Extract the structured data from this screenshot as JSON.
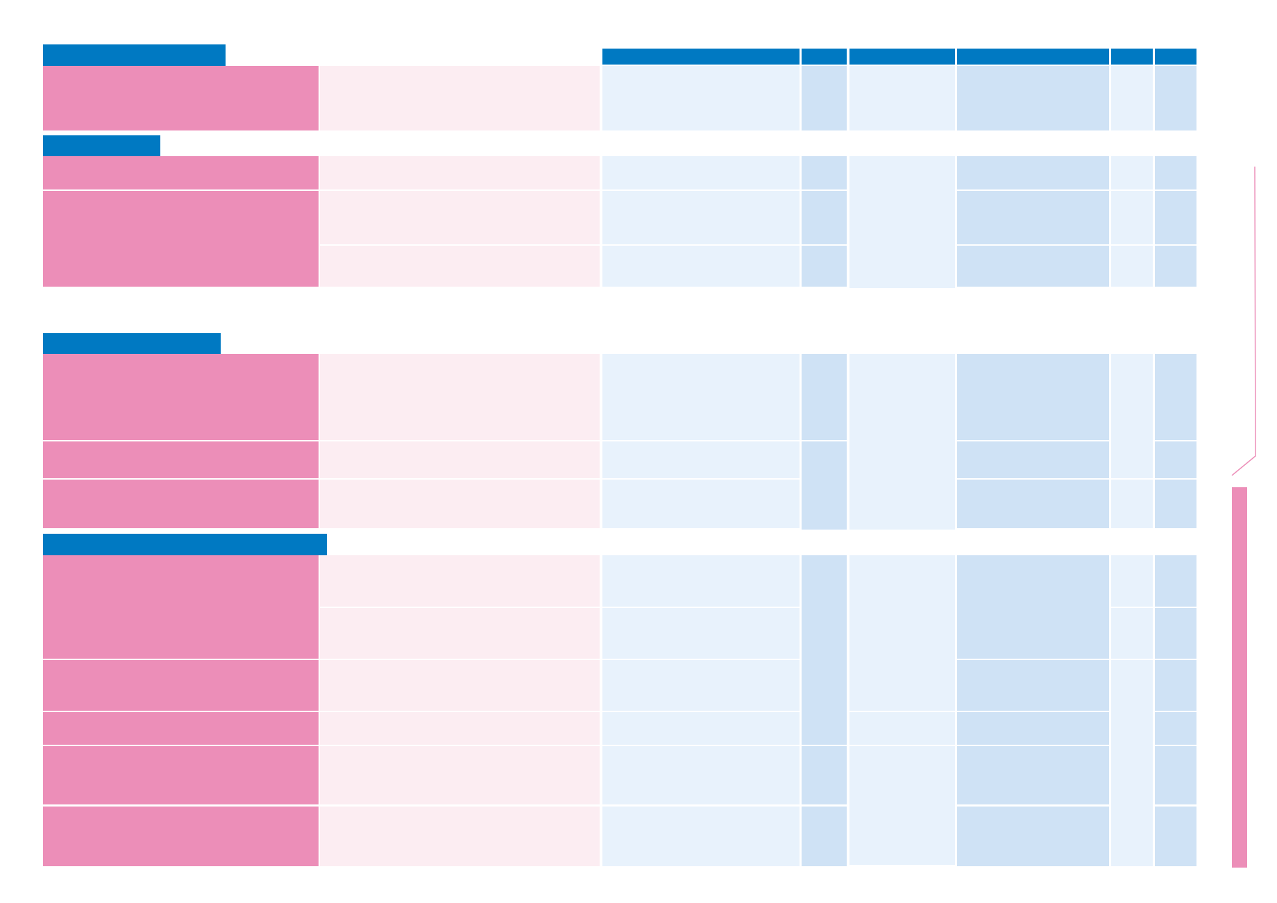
{
  "colors": {
    "header_blue": "#0079C2",
    "label_pink": "#EC8EB8",
    "pale_pink": "#FCEDF2",
    "pale_blue": "#E8F2FC",
    "mid_blue": "#CFE2F5",
    "accent_pink": "#EC8EB8"
  },
  "page": {
    "section_headers": [
      "",
      "",
      "",
      ""
    ],
    "column_headers": [
      "",
      "",
      "",
      "",
      "",
      ""
    ],
    "cells": []
  }
}
